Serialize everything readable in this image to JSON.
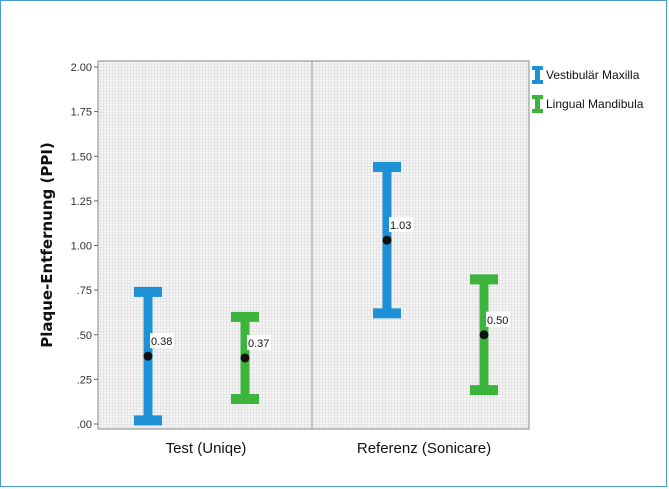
{
  "chart_data": {
    "type": "errorbar",
    "title": "",
    "ylabel": "Plaque-Entfernung (PPI)",
    "xlabel": "",
    "ylim": [
      0,
      2.0
    ],
    "yticks": [
      ".00",
      ".25",
      ".50",
      ".75",
      "1.00",
      "1.25",
      "1.50",
      "1.75",
      "2.00"
    ],
    "categories": [
      "Test (Uniqe)",
      "Referenz (Sonicare)"
    ],
    "grid": true,
    "legend_position": "top-right",
    "series": [
      {
        "name": "Vestibulär Maxilla",
        "color": "#1e90d6",
        "means": [
          0.38,
          1.03
        ],
        "labels": [
          "0.38",
          "1.03"
        ],
        "lower": [
          0.02,
          0.62
        ],
        "upper": [
          0.74,
          1.44
        ]
      },
      {
        "name": "Lingual Mandibula",
        "color": "#3db53d",
        "means": [
          0.37,
          0.5
        ],
        "labels": [
          "0.37",
          "0.50"
        ],
        "lower": [
          0.14,
          0.19
        ],
        "upper": [
          0.6,
          0.81
        ]
      }
    ]
  }
}
